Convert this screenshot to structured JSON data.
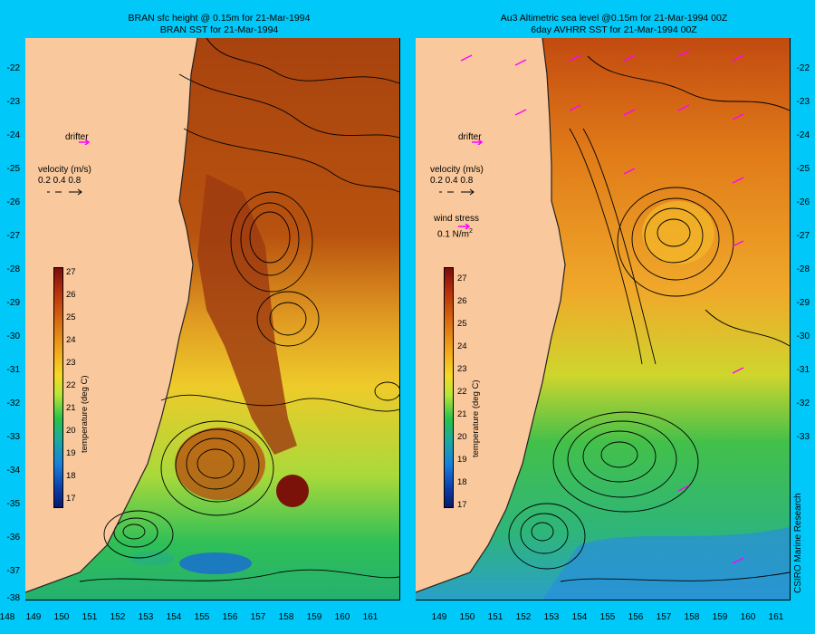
{
  "left_panel": {
    "title_line1": "BRAN sfc height @ 0.15m for 21-Mar-1994",
    "title_line2": "BRAN SST for 21-Mar-1994"
  },
  "right_panel": {
    "title_line1": "Au3 Altimetric sea level  @0.15m  for 21-Mar-1994 00Z",
    "title_line2": "6day AVHRR SST for 21-Mar-1994 00Z"
  },
  "axes": {
    "latitudes": [
      "-22",
      "-23",
      "-24",
      "-25",
      "-26",
      "-27",
      "-28",
      "-29",
      "-30",
      "-31",
      "-32",
      "-33",
      "-34",
      "-35",
      "-36",
      "-37",
      "-38"
    ],
    "left_longitudes": [
      "148",
      "149",
      "150",
      "151",
      "152",
      "153",
      "154",
      "155",
      "156",
      "157",
      "158",
      "159",
      "160",
      "161"
    ],
    "right_longitudes": [
      "149",
      "150",
      "151",
      "152",
      "153",
      "154",
      "155",
      "156",
      "157",
      "158",
      "159",
      "160",
      "161"
    ]
  },
  "legend": {
    "drifter": "drifter",
    "velocity_title": "velocity (m/s)",
    "velocity_scale": "0.2 0.4 0.8",
    "wind_title": "wind stress",
    "wind_scale": "0.1 N/m",
    "wind_superscript": "2"
  },
  "colorbar": {
    "title": "temperature (deg C)",
    "ticks": [
      "27",
      "26",
      "25",
      "24",
      "23",
      "22",
      "21",
      "20",
      "19",
      "18",
      "17"
    ]
  },
  "credit": "CSIRO Marine Research",
  "colors": {
    "background": "#00c8f8",
    "land": "#f9c89c",
    "drifter_arrow": "#ff00ff"
  }
}
